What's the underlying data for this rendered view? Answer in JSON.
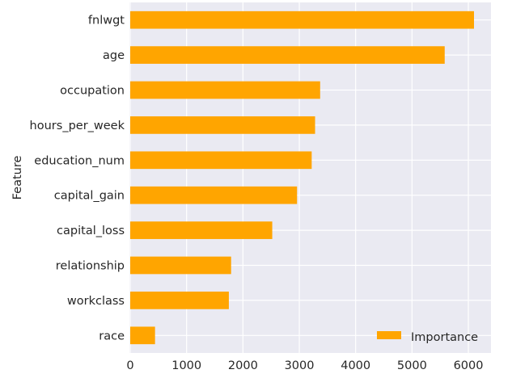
{
  "chart_data": {
    "type": "bar",
    "orientation": "horizontal",
    "ylabel": "Feature",
    "xlabel": "",
    "categories": [
      "fnlwgt",
      "age",
      "occupation",
      "hours_per_week",
      "education_num",
      "capital_gain",
      "capital_loss",
      "relationship",
      "workclass",
      "race"
    ],
    "series": [
      {
        "name": "Importance",
        "color": "#ffa500",
        "values": [
          6100,
          5580,
          3370,
          3280,
          3220,
          2960,
          2520,
          1790,
          1750,
          440
        ]
      }
    ],
    "xlim": [
      0,
      6400
    ],
    "xticks": [
      0,
      1000,
      2000,
      3000,
      4000,
      5000,
      6000
    ],
    "grid": true,
    "background": "#eaeaf2",
    "legend_position": "lower-right"
  }
}
